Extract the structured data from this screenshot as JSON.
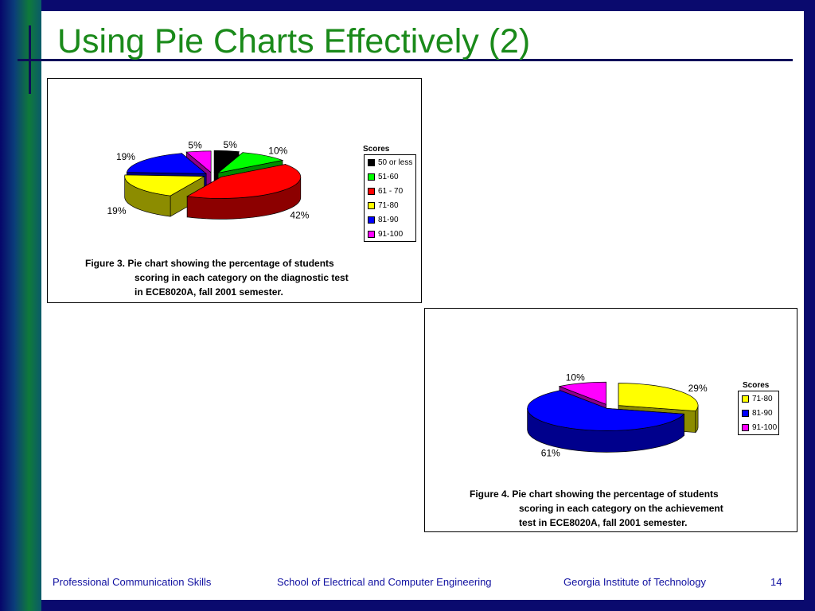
{
  "slide": {
    "title": "Using Pie Charts Effectively (2)"
  },
  "footer": {
    "left": "Professional Communication Skills",
    "center": "School of Electrical and Computer Engineering",
    "right": "Georgia Institute of Technology",
    "page": "14"
  },
  "chart_data": [
    {
      "type": "pie",
      "legend_title": "Scores",
      "categories": [
        "50 or less",
        "51-60",
        "61 - 70",
        "71-80",
        "81-90",
        "91-100"
      ],
      "values": [
        5,
        10,
        42,
        19,
        19,
        5
      ],
      "labels": [
        "5%",
        "10%",
        "42%",
        "19%",
        "19%",
        "5%"
      ],
      "colors": [
        "#000000",
        "#00ff00",
        "#ff0000",
        "#ffff00",
        "#0000ff",
        "#ff00ff"
      ],
      "legend_position": "right",
      "caption": {
        "line1": "Figure 3.  Pie chart showing the percentage of students",
        "line2": "scoring in each category on the diagnostic test",
        "line3": "in ECE8020A, fall 2001 semester."
      }
    },
    {
      "type": "pie",
      "legend_title": "Scores",
      "categories": [
        "71-80",
        "81-90",
        "91-100"
      ],
      "values": [
        29,
        61,
        10
      ],
      "labels": [
        "29%",
        "61%",
        "10%"
      ],
      "colors": [
        "#ffff00",
        "#0000ff",
        "#ff00ff"
      ],
      "legend_position": "right",
      "caption": {
        "line1": "Figure 4.  Pie chart showing the percentage of students",
        "line2": "scoring in each category on the achievement",
        "line3": "test in ECE8020A, fall 2001 semester."
      }
    }
  ]
}
